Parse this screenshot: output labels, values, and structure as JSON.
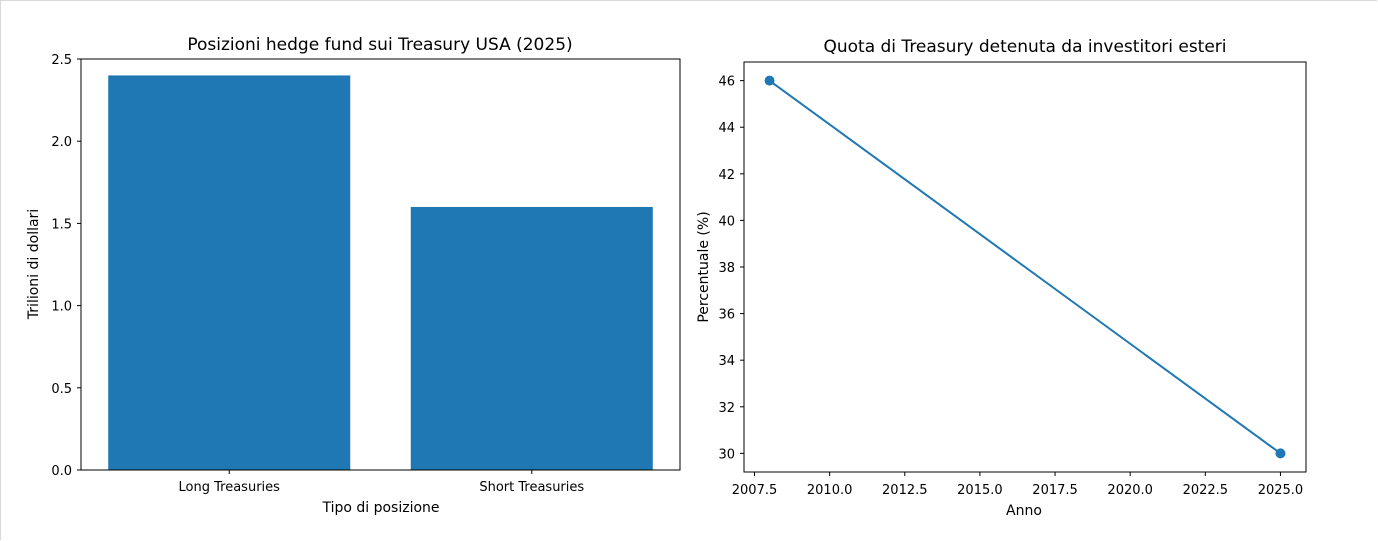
{
  "chart_data": [
    {
      "type": "bar",
      "title": "Posizioni hedge fund sui Treasury USA (2025)",
      "xlabel": "Tipo di posizione",
      "ylabel": "Trilioni di dollari",
      "categories": [
        "Long Treasuries",
        "Short Treasuries"
      ],
      "values": [
        2.4,
        1.6
      ],
      "ylim": [
        0,
        2.5
      ],
      "yticks": [
        "0.0",
        "0.5",
        "1.0",
        "1.5",
        "2.0",
        "2.5"
      ],
      "grid": false,
      "color": "#1f77b4"
    },
    {
      "type": "line",
      "title": "Quota di Treasury detenuta da investitori esteri",
      "xlabel": "Anno",
      "ylabel": "Percentuale (%)",
      "x": [
        2008,
        2025
      ],
      "y": [
        46,
        30
      ],
      "xticks": [
        "2007.5",
        "2010.0",
        "2012.5",
        "2015.0",
        "2017.5",
        "2020.0",
        "2022.5",
        "2025.0"
      ],
      "yticks": [
        "30",
        "32",
        "34",
        "36",
        "38",
        "40",
        "42",
        "44",
        "46"
      ],
      "grid": false,
      "marker": "circle",
      "color": "#1f77b4"
    }
  ]
}
